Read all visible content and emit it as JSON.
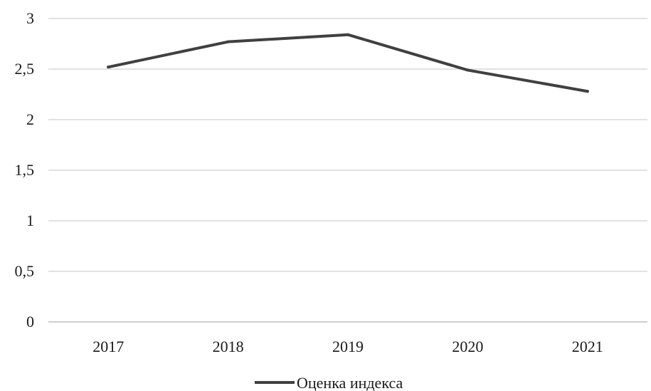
{
  "chart_data": {
    "type": "line",
    "categories": [
      "2017",
      "2018",
      "2019",
      "2020",
      "2021"
    ],
    "series": [
      {
        "name": "Оценка индекса",
        "values": [
          2.52,
          2.77,
          2.84,
          2.49,
          2.28
        ],
        "color": "#404040"
      }
    ],
    "ylim": [
      0,
      3
    ],
    "yticks": [
      "0",
      "0,5",
      "1",
      "1,5",
      "2",
      "2,5",
      "3"
    ],
    "grid": true,
    "legend": "bottom-center"
  }
}
